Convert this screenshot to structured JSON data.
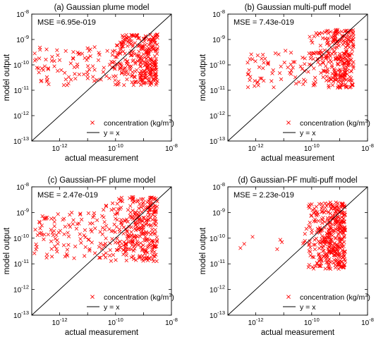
{
  "figure": {
    "legend": {
      "marker_label": "concentration (kg/m",
      "marker_label_sup": "3",
      "marker_label_close": ")",
      "line_label": "y = x"
    },
    "xlabel": "actual measurement",
    "ylabel": "model output",
    "ticks": {
      "y": [
        {
          "exp": -8,
          "base": "10",
          "sup": "-8"
        },
        {
          "exp": -9,
          "base": "10",
          "sup": "-9"
        },
        {
          "exp": -10,
          "base": "10",
          "sup": "-10"
        },
        {
          "exp": -11,
          "base": "10",
          "sup": "-11"
        },
        {
          "exp": -12,
          "base": "10",
          "sup": "-12"
        },
        {
          "exp": -13,
          "base": "10",
          "sup": "-13"
        }
      ],
      "x": [
        {
          "exp": -12,
          "base": "10",
          "sup": "-12"
        },
        {
          "exp": -10,
          "base": "10",
          "sup": "-10"
        },
        {
          "exp": -8,
          "base": "10",
          "sup": "-8"
        }
      ]
    },
    "colors": {
      "marker": "#ff0000",
      "line": "#000000",
      "axes": "#000000"
    }
  },
  "chart_data": [
    {
      "type": "scatter",
      "title": "(a) Gaussian plume model",
      "mse": "MSE =6.95e-019",
      "xlabel": "actual measurement",
      "ylabel": "model output",
      "log_scale": true,
      "xlim": [
        1e-13,
        1e-08
      ],
      "ylim": [
        1e-13,
        1e-08
      ],
      "series": [
        {
          "name": "concentration (kg/m3)",
          "cluster": {
            "count": 300,
            "x_log_range": [
              -10.2,
              -8.5
            ],
            "y_log_range": [
              -10.8,
              -8.8
            ]
          },
          "scatter_spread": {
            "count": 90,
            "x_log_range": [
              -12.9,
              -10.0
            ],
            "y_log_range": [
              -10.8,
              -9.3
            ]
          }
        },
        {
          "name": "y = x"
        }
      ],
      "legend_position": "bottom-right",
      "grid": false
    },
    {
      "type": "scatter",
      "title": "(b) Gaussian multi-puff model",
      "mse": "MSE = 7.43e-019",
      "xlabel": "actual measurement",
      "ylabel": "model output",
      "log_scale": true,
      "xlim": [
        1e-13,
        1e-08
      ],
      "ylim": [
        1e-13,
        1e-08
      ],
      "series": [
        {
          "name": "concentration (kg/m3)",
          "cluster": {
            "count": 300,
            "x_log_range": [
              -10.3,
              -8.5
            ],
            "y_log_range": [
              -10.9,
              -8.6
            ]
          },
          "scatter_spread": {
            "count": 60,
            "x_log_range": [
              -12.3,
              -10.2
            ],
            "y_log_range": [
              -10.9,
              -9.4
            ]
          }
        },
        {
          "name": "y = x"
        }
      ],
      "legend_position": "bottom-right",
      "grid": false
    },
    {
      "type": "scatter",
      "title": "(c) Gaussian-PF plume model",
      "mse": "MSE = 2.47e-019",
      "xlabel": "actual measurement",
      "ylabel": "model output",
      "log_scale": true,
      "xlim": [
        1e-13,
        1e-08
      ],
      "ylim": [
        1e-13,
        1e-08
      ],
      "series": [
        {
          "name": "concentration (kg/m3)",
          "cluster": {
            "count": 320,
            "x_log_range": [
              -10.5,
              -8.5
            ],
            "y_log_range": [
              -10.9,
              -8.4
            ]
          },
          "scatter_spread": {
            "count": 110,
            "x_log_range": [
              -13.0,
              -10.3
            ],
            "y_log_range": [
              -10.8,
              -9.0
            ]
          }
        },
        {
          "name": "y = x"
        }
      ],
      "legend_position": "bottom-right",
      "grid": false
    },
    {
      "type": "scatter",
      "title": "(d) Gaussian-PF multi-puff model",
      "mse": "MSE = 2.23e-019",
      "xlabel": "actual measurement",
      "ylabel": "model output",
      "log_scale": true,
      "xlim": [
        1e-13,
        1e-08
      ],
      "ylim": [
        1e-13,
        1e-08
      ],
      "series": [
        {
          "name": "concentration (kg/m3)",
          "cluster": {
            "count": 380,
            "x_log_range": [
              -10.4,
              -8.8
            ],
            "y_log_range": [
              -11.2,
              -8.6
            ]
          },
          "scatter_spread": {
            "count": 6,
            "x_log_range": [
              -12.6,
              -11.0
            ],
            "y_log_range": [
              -10.7,
              -9.9
            ]
          }
        },
        {
          "name": "y = x"
        }
      ],
      "legend_position": "bottom-right",
      "grid": false
    }
  ]
}
